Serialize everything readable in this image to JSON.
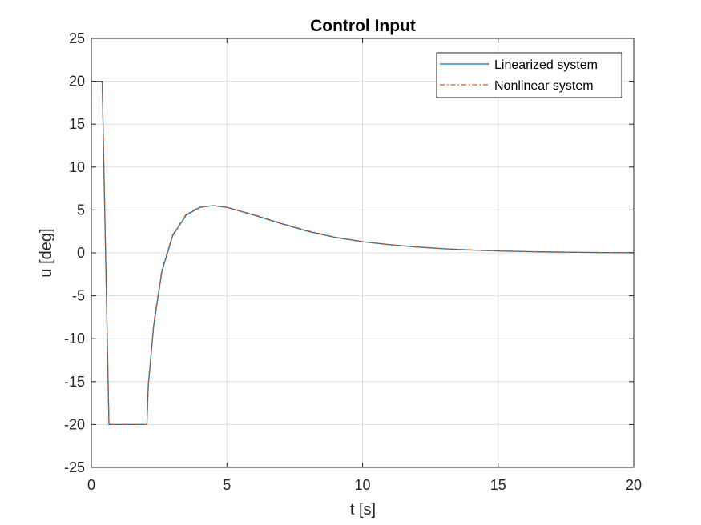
{
  "chart_data": {
    "type": "line",
    "title": "Control Input",
    "xlabel": "t [s]",
    "ylabel": "u [deg]",
    "xlim": [
      0,
      20
    ],
    "ylim": [
      -25,
      25
    ],
    "xticks": [
      0,
      5,
      10,
      15,
      20
    ],
    "yticks": [
      -25,
      -20,
      -15,
      -10,
      -5,
      0,
      5,
      10,
      15,
      20,
      25
    ],
    "grid": true,
    "legend_position": "top-right",
    "x": [
      0,
      0.4,
      0.65,
      2.05,
      2.1,
      2.3,
      2.6,
      3.0,
      3.5,
      4.0,
      4.5,
      5.0,
      6.0,
      7.0,
      8.0,
      9.0,
      10.0,
      11.0,
      12.0,
      13.0,
      14.0,
      15.0,
      16.0,
      17.0,
      18.0,
      19.0,
      20.0
    ],
    "series": [
      {
        "name": "Linearized system",
        "color": "#0072BD",
        "style": "solid",
        "values": [
          20,
          20,
          -20,
          -20,
          -15.5,
          -8.5,
          -2.2,
          2.0,
          4.4,
          5.3,
          5.5,
          5.3,
          4.4,
          3.4,
          2.5,
          1.8,
          1.3,
          0.95,
          0.68,
          0.48,
          0.33,
          0.22,
          0.15,
          0.1,
          0.06,
          0.03,
          0.02
        ]
      },
      {
        "name": "Nonlinear system",
        "color": "#D95319",
        "style": "dashdot",
        "values": [
          20,
          20,
          -20,
          -20,
          -15.3,
          -8.3,
          -2.0,
          2.1,
          4.5,
          5.35,
          5.5,
          5.3,
          4.45,
          3.45,
          2.55,
          1.82,
          1.3,
          0.95,
          0.68,
          0.48,
          0.33,
          0.22,
          0.15,
          0.1,
          0.06,
          0.03,
          0.02
        ]
      }
    ]
  }
}
